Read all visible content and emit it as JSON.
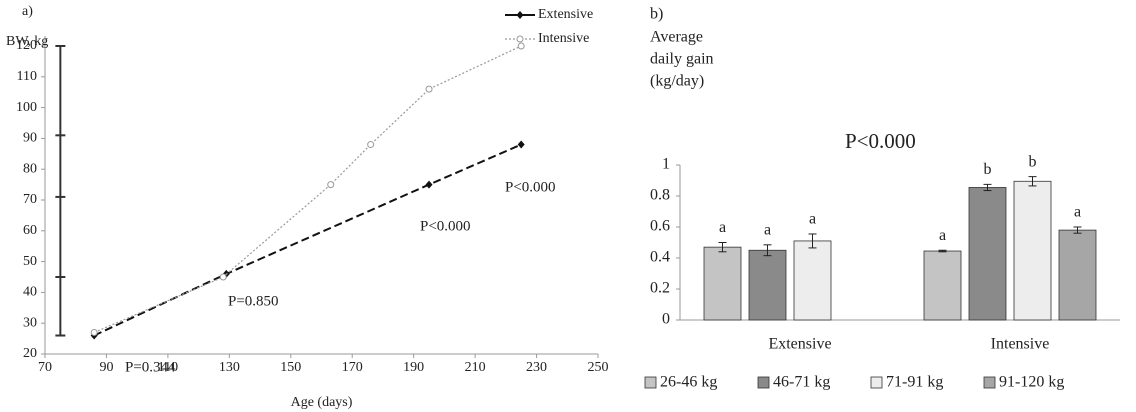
{
  "chart_data": [
    {
      "type": "line",
      "title": "a)",
      "y_label": "BW, kg",
      "x_label": "Age (days)",
      "xlim": [
        70,
        250
      ],
      "xticks": [
        70,
        90,
        110,
        130,
        150,
        170,
        190,
        210,
        230,
        250
      ],
      "ylim": [
        20,
        120
      ],
      "yticks": [
        20,
        30,
        40,
        50,
        60,
        70,
        80,
        90,
        100,
        110,
        120
      ],
      "weight_marks": [
        26,
        45,
        71,
        91,
        120
      ],
      "legend": "top-right",
      "series": [
        {
          "name": "Extensive",
          "color": "#111111",
          "x": [
            86,
            129,
            195,
            225
          ],
          "values": [
            26,
            46,
            75,
            88
          ]
        },
        {
          "name": "Intensive",
          "color": "#999999",
          "x": [
            86,
            128,
            163,
            176,
            195,
            225
          ],
          "values": [
            27,
            45,
            75,
            88,
            106,
            120
          ]
        }
      ],
      "annotations": [
        "P=0.344",
        "P=0.850",
        "P<0.000",
        "P<0.000"
      ]
    },
    {
      "type": "bar",
      "title": "b)",
      "y_label": [
        "Average",
        "daily gain",
        "(kg/day)"
      ],
      "annotation": "P<0.000",
      "categories": [
        "Extensive",
        "Intensive"
      ],
      "ylim": [
        0,
        1
      ],
      "yticks": [
        0,
        0.2,
        0.4,
        0.6,
        0.8,
        1
      ],
      "legend": "bottom",
      "series": [
        {
          "name": "26-46 kg",
          "color": "#c4c4c4",
          "values": [
            0.47,
            0.445
          ],
          "errors": [
            0.03,
            0.005
          ],
          "letters": [
            "a",
            "a"
          ]
        },
        {
          "name": "46-71 kg",
          "color": "#8a8a8a",
          "values": [
            0.45,
            0.855
          ],
          "errors": [
            0.035,
            0.02
          ],
          "letters": [
            "a",
            "b"
          ]
        },
        {
          "name": "71-91 kg",
          "color": "#ededed",
          "values": [
            0.51,
            0.895
          ],
          "errors": [
            0.045,
            0.03
          ],
          "letters": [
            "a",
            "b"
          ]
        },
        {
          "name": "91-120 kg",
          "color": "#a6a6a6",
          "values": [
            null,
            0.58
          ],
          "errors": [
            null,
            0.02
          ],
          "letters": [
            null,
            "a"
          ]
        }
      ]
    }
  ]
}
